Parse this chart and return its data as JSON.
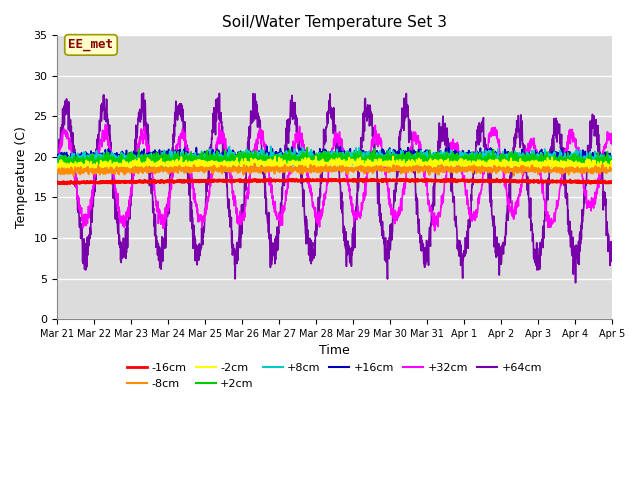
{
  "title": "Soil/Water Temperature Set 3",
  "xlabel": "Time",
  "ylabel": "Temperature (C)",
  "ylim": [
    0,
    35
  ],
  "yticks": [
    0,
    5,
    10,
    15,
    20,
    25,
    30,
    35
  ],
  "annotation_text": "EE_met",
  "annotation_color": "#8B0000",
  "annotation_bg": "#FFFFCC",
  "annotation_edge": "#999900",
  "fig_bg": "#FFFFFF",
  "plot_bg": "#DCDCDC",
  "grid_color": "#FFFFFF",
  "tick_labels": [
    "Mar 21",
    "Mar 22",
    "Mar 23",
    "Mar 24",
    "Mar 25",
    "Mar 26",
    "Mar 27",
    "Mar 28",
    "Mar 29",
    "Mar 30",
    "Mar 31",
    "Apr 1",
    "Apr 2",
    "Apr 3",
    "Apr 4",
    "Apr 5"
  ],
  "tick_positions": [
    0,
    1,
    2,
    3,
    4,
    5,
    6,
    7,
    8,
    9,
    10,
    11,
    12,
    13,
    14,
    15
  ],
  "legend_entries": [
    [
      "-16cm",
      "#FF0000",
      2.0
    ],
    [
      "-8cm",
      "#FF8C00",
      1.5
    ],
    [
      "-2cm",
      "#FFFF00",
      1.5
    ],
    [
      "+2cm",
      "#00CC00",
      1.5
    ],
    [
      "+8cm",
      "#00CCCC",
      1.5
    ],
    [
      "+16cm",
      "#0000BB",
      1.5
    ],
    [
      "+32cm",
      "#FF00FF",
      1.5
    ],
    [
      "+64cm",
      "#7700AA",
      1.5
    ]
  ]
}
